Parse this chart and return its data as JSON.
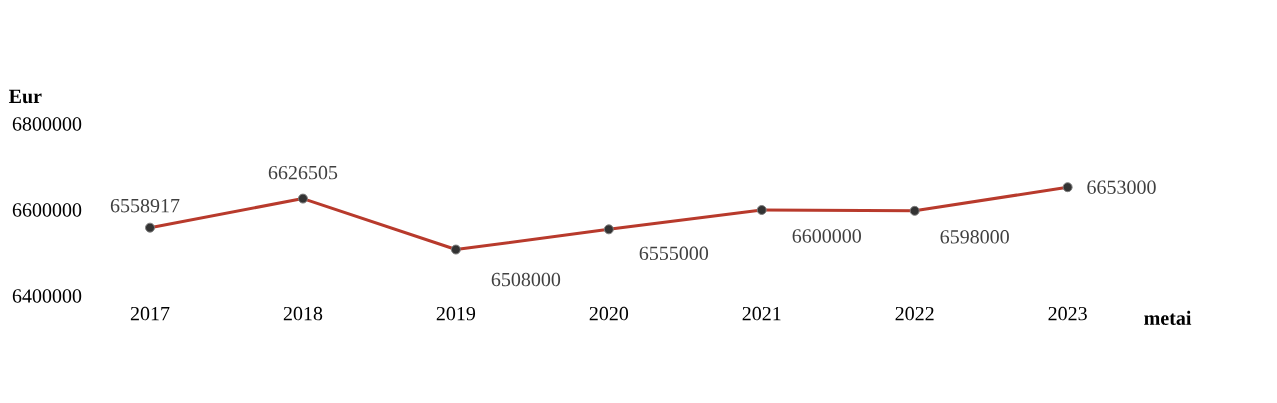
{
  "chart_data": {
    "type": "line",
    "xlabel": "metai",
    "ylabel": "Eur",
    "categories": [
      "2017",
      "2018",
      "2019",
      "2020",
      "2021",
      "2022",
      "2023"
    ],
    "series": [
      {
        "color": "#b83a2c",
        "values": [
          6558917,
          6626505,
          6508000,
          6555000,
          6600000,
          6598000,
          6653000
        ]
      }
    ],
    "ylim": [
      6400000,
      6800000
    ],
    "yticks": [
      6400000,
      6600000,
      6800000
    ],
    "marker": "circle",
    "line_style": "solid",
    "data_labels": true,
    "grid": false
  }
}
